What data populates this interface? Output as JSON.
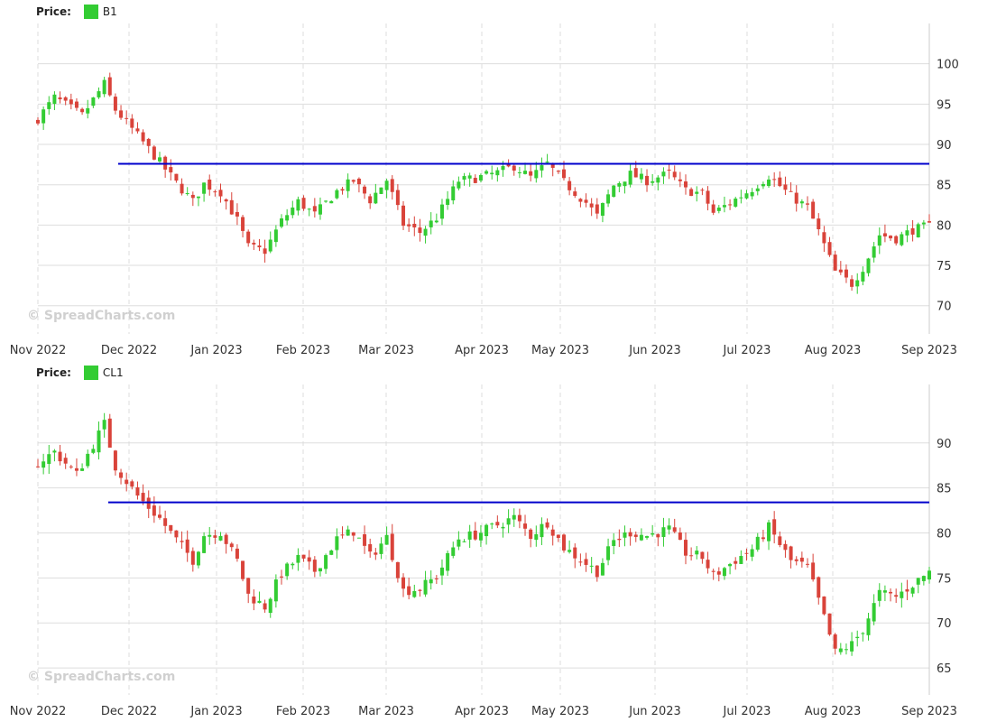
{
  "colors": {
    "up": "#33cc33",
    "down": "#d9433a",
    "resistance": "#0000cc",
    "grid": "#dddddd"
  },
  "watermark": "© SpreadCharts.com",
  "chart_data": [
    {
      "type": "candlestick",
      "price_label": "Price:",
      "legend": "B1",
      "x_ticks": [
        "Nov 2022",
        "Dec 2022",
        "Jan 2023",
        "Feb 2023",
        "Mar 2023",
        "Apr 2023",
        "May 2023",
        "Jun 2023",
        "Jul 2023",
        "Aug 2023",
        "Sep 2023"
      ],
      "y_ticks": [
        70,
        75,
        80,
        85,
        90,
        95,
        100
      ],
      "ylim": [
        66.5,
        105
      ],
      "resistance": {
        "value": 87.6,
        "from": "Dec 2022"
      },
      "closes": [
        [
          0,
          93.2
        ],
        [
          3,
          95.8
        ],
        [
          8,
          93.6
        ],
        [
          12,
          97.5
        ],
        [
          14,
          94.3
        ],
        [
          18,
          91.1
        ],
        [
          22,
          87.8
        ],
        [
          25,
          85.2
        ],
        [
          28,
          82.9
        ],
        [
          30,
          85.1
        ],
        [
          33,
          84.1
        ],
        [
          36,
          80.6
        ],
        [
          38,
          77.3
        ],
        [
          41,
          76.8
        ],
        [
          44,
          80.5
        ],
        [
          47,
          82.9
        ],
        [
          50,
          81.3
        ],
        [
          54,
          84.2
        ],
        [
          57,
          85.5
        ],
        [
          60,
          83.1
        ],
        [
          63,
          85.6
        ],
        [
          66,
          80.1
        ],
        [
          69,
          79.1
        ],
        [
          72,
          80.9
        ],
        [
          76,
          85.5
        ],
        [
          79,
          85.8
        ],
        [
          83,
          86.5
        ],
        [
          86,
          87.3
        ],
        [
          89,
          85.9
        ],
        [
          92,
          87.6
        ],
        [
          95,
          85.3
        ],
        [
          99,
          82.8
        ],
        [
          101,
          81.1
        ],
        [
          104,
          84.9
        ],
        [
          107,
          86.3
        ],
        [
          110,
          85.5
        ],
        [
          114,
          86.4
        ],
        [
          117,
          84.3
        ],
        [
          120,
          83.9
        ],
        [
          122,
          81.5
        ],
        [
          126,
          83.2
        ],
        [
          129,
          84.5
        ],
        [
          132,
          86.1
        ],
        [
          136,
          83.6
        ],
        [
          139,
          82.2
        ],
        [
          141,
          79.2
        ],
        [
          144,
          74.2
        ],
        [
          147,
          72.7
        ],
        [
          149,
          74.7
        ],
        [
          152,
          78.8
        ],
        [
          155,
          78.3
        ],
        [
          158,
          79.4
        ],
        [
          161,
          79.9
        ]
      ]
    },
    {
      "type": "candlestick",
      "price_label": "Price:",
      "legend": "CL1",
      "x_ticks": [
        "Nov 2022",
        "Dec 2022",
        "Jan 2023",
        "Feb 2023",
        "Mar 2023",
        "Apr 2023",
        "May 2023",
        "Jun 2023",
        "Jul 2023",
        "Aug 2023",
        "Sep 2023"
      ],
      "y_ticks": [
        65,
        70,
        75,
        80,
        85,
        90
      ],
      "ylim": [
        62,
        96.5
      ],
      "resistance": {
        "value": 83.4,
        "from": "Dec 2022"
      },
      "closes": [
        [
          0,
          87.8
        ],
        [
          3,
          89.0
        ],
        [
          7,
          86.5
        ],
        [
          12,
          92.1
        ],
        [
          14,
          87.4
        ],
        [
          18,
          84.1
        ],
        [
          22,
          81.6
        ],
        [
          25,
          79.2
        ],
        [
          28,
          77.0
        ],
        [
          30,
          79.8
        ],
        [
          33,
          80.1
        ],
        [
          36,
          76.9
        ],
        [
          38,
          73.1
        ],
        [
          41,
          71.8
        ],
        [
          44,
          75.5
        ],
        [
          47,
          77.2
        ],
        [
          50,
          75.8
        ],
        [
          54,
          79.3
        ],
        [
          57,
          80.2
        ],
        [
          60,
          77.4
        ],
        [
          63,
          79.5
        ],
        [
          66,
          73.6
        ],
        [
          69,
          73.8
        ],
        [
          72,
          75.2
        ],
        [
          76,
          79.4
        ],
        [
          79,
          79.8
        ],
        [
          83,
          80.9
        ],
        [
          86,
          81.7
        ],
        [
          89,
          79.7
        ],
        [
          92,
          81.2
        ],
        [
          95,
          78.4
        ],
        [
          99,
          76.6
        ],
        [
          101,
          75.7
        ],
        [
          104,
          79.1
        ],
        [
          107,
          80.1
        ],
        [
          110,
          79.7
        ],
        [
          114,
          80.4
        ],
        [
          117,
          77.8
        ],
        [
          120,
          77.3
        ],
        [
          122,
          75.2
        ],
        [
          126,
          77.0
        ],
        [
          129,
          78.2
        ],
        [
          132,
          80.6
        ],
        [
          136,
          76.9
        ],
        [
          139,
          76.2
        ],
        [
          141,
          72.5
        ],
        [
          144,
          66.7
        ],
        [
          147,
          67.6
        ],
        [
          149,
          69.3
        ],
        [
          152,
          73.3
        ],
        [
          155,
          72.9
        ],
        [
          158,
          74.3
        ],
        [
          161,
          75.7
        ]
      ]
    }
  ]
}
